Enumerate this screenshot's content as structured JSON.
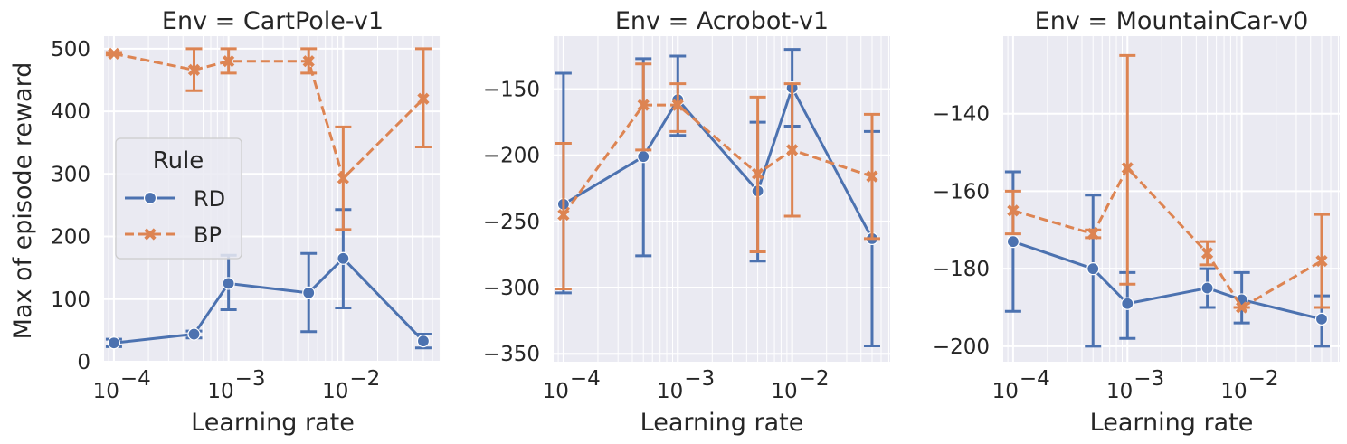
{
  "figure": {
    "ylabel": "Max of episode reward",
    "xlabel": "Learning rate"
  },
  "legend": {
    "title": "Rule",
    "entries": [
      {
        "label": "RD",
        "color": "#4c72b0",
        "marker": "circle",
        "dash": "solid"
      },
      {
        "label": "BP",
        "color": "#dd8452",
        "marker": "x",
        "dash": "dashed"
      }
    ]
  },
  "style": {
    "background": "#eaeaf2",
    "grid": "#ffffff",
    "text": "#262626"
  },
  "chart_data": [
    {
      "type": "line",
      "title": "Env = CartPole-v1",
      "xlabel": "Learning rate",
      "ylabel": "Max of episode reward",
      "xscale": "log",
      "xlim": [
        8.2e-05,
        0.072
      ],
      "ylim": [
        0,
        520
      ],
      "xticks": [
        {
          "value": 0.0001,
          "base": "10",
          "exp": "−4"
        },
        {
          "value": 0.001,
          "base": "10",
          "exp": "−3"
        },
        {
          "value": 0.01,
          "base": "10",
          "exp": "−2"
        }
      ],
      "yticks": [
        {
          "value": 0,
          "label": "0"
        },
        {
          "value": 100,
          "label": "100"
        },
        {
          "value": 200,
          "label": "200"
        },
        {
          "value": 300,
          "label": "300"
        },
        {
          "value": 400,
          "label": "400"
        },
        {
          "value": 500,
          "label": "500"
        }
      ],
      "grid": true,
      "legend": true,
      "legend_position": "center-left",
      "x": [
        0.0001,
        0.0005,
        0.001,
        0.005,
        0.01,
        0.05
      ],
      "series": [
        {
          "name": "RD",
          "values": [
            30,
            44,
            125,
            110,
            165,
            33
          ],
          "err_low": [
            24,
            38,
            83,
            48,
            86,
            22
          ],
          "err_high": [
            36,
            49,
            170,
            173,
            243,
            44
          ]
        },
        {
          "name": "BP",
          "values": [
            492,
            466,
            480,
            480,
            293,
            420
          ],
          "err_low": [
            490,
            433,
            461,
            461,
            211,
            343
          ],
          "err_high": [
            494,
            500,
            500,
            500,
            375,
            500
          ]
        }
      ]
    },
    {
      "type": "line",
      "title": "Env = Acrobot-v1",
      "xlabel": "Learning rate",
      "ylabel": "",
      "xscale": "log",
      "xlim": [
        8.2e-05,
        0.072
      ],
      "ylim": [
        -356,
        -110
      ],
      "xticks": [
        {
          "value": 0.0001,
          "base": "10",
          "exp": "−4"
        },
        {
          "value": 0.001,
          "base": "10",
          "exp": "−3"
        },
        {
          "value": 0.01,
          "base": "10",
          "exp": "−2"
        }
      ],
      "yticks": [
        {
          "value": -150,
          "label": "−150"
        },
        {
          "value": -200,
          "label": "−200"
        },
        {
          "value": -250,
          "label": "−250"
        },
        {
          "value": -300,
          "label": "−300"
        },
        {
          "value": -350,
          "label": "−350"
        }
      ],
      "grid": true,
      "legend": false,
      "x": [
        0.0001,
        0.0005,
        0.001,
        0.005,
        0.01,
        0.05
      ],
      "series": [
        {
          "name": "RD",
          "values": [
            -237,
            -201,
            -158,
            -227,
            -149,
            -263
          ],
          "err_low": [
            -304,
            -276,
            -185,
            -280,
            -178,
            -344
          ],
          "err_high": [
            -138,
            -127,
            -125,
            -175,
            -120,
            -182
          ]
        },
        {
          "name": "BP",
          "values": [
            -245,
            -162,
            -162,
            -214,
            -196,
            -216
          ],
          "err_low": [
            -301,
            -196,
            -182,
            -273,
            -246,
            -263
          ],
          "err_high": [
            -191,
            -131,
            -146,
            -156,
            -146,
            -169
          ]
        }
      ]
    },
    {
      "type": "line",
      "title": "Env = MountainCar-v0",
      "xlabel": "Learning rate",
      "ylabel": "",
      "xscale": "log",
      "xlim": [
        8.2e-05,
        0.072
      ],
      "ylim": [
        -204,
        -120
      ],
      "xticks": [
        {
          "value": 0.0001,
          "base": "10",
          "exp": "−4"
        },
        {
          "value": 0.001,
          "base": "10",
          "exp": "−3"
        },
        {
          "value": 0.01,
          "base": "10",
          "exp": "−2"
        }
      ],
      "yticks": [
        {
          "value": -140,
          "label": "−140"
        },
        {
          "value": -160,
          "label": "−160"
        },
        {
          "value": -180,
          "label": "−180"
        },
        {
          "value": -200,
          "label": "−200"
        }
      ],
      "grid": true,
      "legend": false,
      "x": [
        0.0001,
        0.0005,
        0.001,
        0.005,
        0.01,
        0.05
      ],
      "series": [
        {
          "name": "RD",
          "values": [
            -173,
            -180,
            -189,
            -185,
            -188,
            -193
          ],
          "err_low": [
            -191,
            -200,
            -198,
            -190,
            -194,
            -200
          ],
          "err_high": [
            -155,
            -161,
            -181,
            -180,
            -181,
            -187
          ]
        },
        {
          "name": "BP",
          "values": [
            -165,
            -171,
            -154,
            -176,
            -190,
            -178
          ],
          "err_low": [
            -171,
            -172,
            -184,
            -179,
            -190,
            -190
          ],
          "err_high": [
            -160,
            -170,
            -125,
            -173,
            -190,
            -166
          ]
        }
      ]
    }
  ]
}
